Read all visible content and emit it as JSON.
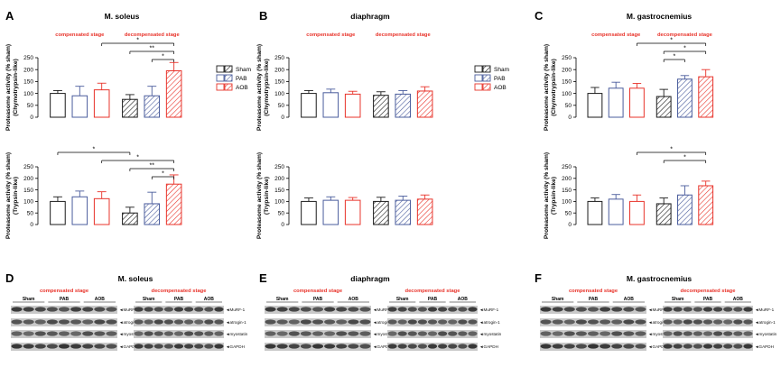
{
  "colors": {
    "sham": "#1a1a1a",
    "pab": "#4a5c9c",
    "aob": "#e8332a",
    "stage": "#e8332a"
  },
  "legend": [
    "Sham",
    "PAB",
    "AOB"
  ],
  "labels": {
    "compensated": "compensated stage",
    "decompensated": "decompensated stage"
  },
  "ylabels": {
    "chymo_1": "Proteasome activity (% sham)",
    "chymo_2": "(Chymotrypsin-like)",
    "tryp_1": "Proteasome activity (% sham)",
    "tryp_2": "(Trypsin-like)"
  },
  "blot_rows": [
    "MuRF-1",
    "atrogin-1",
    "myostatin",
    "GAPDH"
  ],
  "chart_data": [
    {
      "id": "A-top",
      "letter": "A",
      "type": "bar",
      "title": "M. soleus",
      "ylabel": "Proteasome activity (% sham) (Chymotrypsin-like)",
      "ylim": [
        0,
        250
      ],
      "yticks": [
        0,
        50,
        100,
        150,
        200,
        250
      ],
      "categories": [
        "Sham",
        "PAB",
        "AOB",
        "Sham",
        "PAB",
        "AOB"
      ],
      "stage": [
        "compensated",
        "compensated",
        "compensated",
        "decompensated",
        "decompensated",
        "decompensated"
      ],
      "values": [
        100,
        90,
        115,
        75,
        90,
        195
      ],
      "errors": [
        12,
        40,
        28,
        20,
        40,
        35
      ],
      "brackets": [
        {
          "from": 2,
          "to": 5,
          "label": "*"
        },
        {
          "from": 3,
          "to": 5,
          "label": "**"
        },
        {
          "from": 4,
          "to": 5,
          "label": "*"
        }
      ]
    },
    {
      "id": "A-bottom",
      "letter": "",
      "type": "bar",
      "title": "",
      "ylabel": "Proteasome activity (% sham) (Trypsin-like)",
      "ylim": [
        0,
        250
      ],
      "yticks": [
        0,
        50,
        100,
        150,
        200,
        250
      ],
      "categories": [
        "Sham",
        "PAB",
        "AOB",
        "Sham",
        "PAB",
        "AOB"
      ],
      "stage": [
        "compensated",
        "compensated",
        "compensated",
        "decompensated",
        "decompensated",
        "decompensated"
      ],
      "values": [
        100,
        120,
        112,
        50,
        90,
        175
      ],
      "errors": [
        20,
        25,
        30,
        25,
        50,
        40
      ],
      "brackets": [
        {
          "from": 0,
          "to": 3,
          "label": "*"
        },
        {
          "from": 2,
          "to": 5,
          "label": "*"
        },
        {
          "from": 3,
          "to": 5,
          "label": "**"
        },
        {
          "from": 4,
          "to": 5,
          "label": "*"
        }
      ]
    },
    {
      "id": "B-top",
      "letter": "B",
      "type": "bar",
      "title": "diaphragm",
      "ylabel": "Proteasome activity (% sham) (Chymotrypsin-like)",
      "ylim": [
        0,
        250
      ],
      "yticks": [
        0,
        50,
        100,
        150,
        200,
        250
      ],
      "categories": [
        "Sham",
        "PAB",
        "AOB",
        "Sham",
        "PAB",
        "AOB"
      ],
      "stage": [
        "compensated",
        "compensated",
        "compensated",
        "decompensated",
        "decompensated",
        "decompensated"
      ],
      "values": [
        100,
        103,
        97,
        92,
        97,
        110
      ],
      "errors": [
        12,
        15,
        12,
        15,
        15,
        18
      ],
      "brackets": []
    },
    {
      "id": "B-bottom",
      "letter": "",
      "type": "bar",
      "title": "",
      "ylabel": "Proteasome activity (% sham) (Trypsin-like)",
      "ylim": [
        0,
        250
      ],
      "yticks": [
        0,
        50,
        100,
        150,
        200,
        250
      ],
      "categories": [
        "Sham",
        "PAB",
        "AOB",
        "Sham",
        "PAB",
        "AOB"
      ],
      "stage": [
        "compensated",
        "compensated",
        "compensated",
        "decompensated",
        "decompensated",
        "decompensated"
      ],
      "values": [
        100,
        105,
        105,
        100,
        105,
        110
      ],
      "errors": [
        15,
        15,
        12,
        18,
        18,
        18
      ],
      "brackets": []
    },
    {
      "id": "C-top",
      "letter": "C",
      "type": "bar",
      "title": "M. gastrocnemius",
      "ylabel": "Proteasome activity (% sham) (Chymotrypsin-like)",
      "ylim": [
        0,
        250
      ],
      "yticks": [
        0,
        50,
        100,
        150,
        200,
        250
      ],
      "categories": [
        "Sham",
        "PAB",
        "AOB",
        "Sham",
        "PAB",
        "AOB"
      ],
      "stage": [
        "compensated",
        "compensated",
        "compensated",
        "decompensated",
        "decompensated",
        "decompensated"
      ],
      "values": [
        100,
        122,
        122,
        87,
        160,
        170
      ],
      "errors": [
        25,
        25,
        20,
        30,
        15,
        30
      ],
      "brackets": [
        {
          "from": 2,
          "to": 5,
          "label": "*"
        },
        {
          "from": 3,
          "to": 5,
          "label": "*"
        },
        {
          "from": 3,
          "to": 4,
          "label": "*"
        }
      ]
    },
    {
      "id": "C-bottom",
      "letter": "",
      "type": "bar",
      "title": "",
      "ylabel": "Proteasome activity (% sham) (Trypsin-like)",
      "ylim": [
        0,
        250
      ],
      "yticks": [
        0,
        50,
        100,
        150,
        200,
        250
      ],
      "categories": [
        "Sham",
        "PAB",
        "AOB",
        "Sham",
        "PAB",
        "AOB"
      ],
      "stage": [
        "compensated",
        "compensated",
        "compensated",
        "decompensated",
        "decompensated",
        "decompensated"
      ],
      "values": [
        100,
        110,
        100,
        90,
        128,
        168
      ],
      "errors": [
        15,
        20,
        28,
        25,
        40,
        20
      ],
      "brackets": [
        {
          "from": 2,
          "to": 5,
          "label": "*"
        },
        {
          "from": 3,
          "to": 5,
          "label": "*"
        }
      ]
    }
  ],
  "blots": [
    {
      "id": "D",
      "letter": "D",
      "title": "M. soleus",
      "groups": [
        "Sham",
        "PAB",
        "AOB"
      ]
    },
    {
      "id": "E",
      "letter": "E",
      "title": "diaphragm",
      "groups": [
        "Sham",
        "PAB",
        "AOB"
      ]
    },
    {
      "id": "F",
      "letter": "F",
      "title": "M. gastrocnemius",
      "groups": [
        "Sham",
        "PAB",
        "AOB"
      ]
    }
  ]
}
